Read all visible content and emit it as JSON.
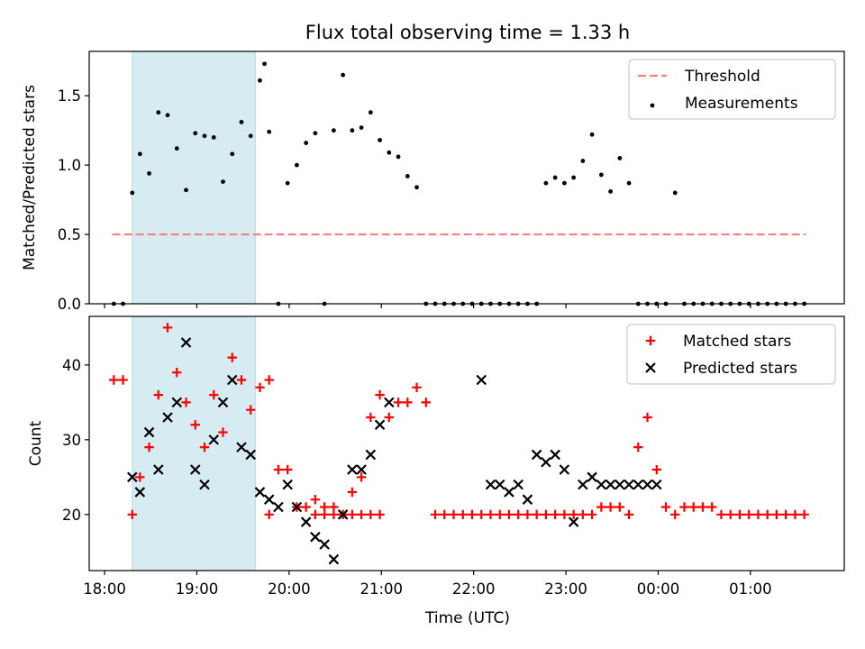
{
  "figure": {
    "title": "Flux total observing time = 1.33 h",
    "xlabel": "Time (UTC)",
    "x_tick_labels": [
      "18:00",
      "19:00",
      "20:00",
      "21:00",
      "22:00",
      "23:00",
      "00:00",
      "01:00"
    ],
    "shaded_span": {
      "start": "18:18",
      "end": "19:38",
      "color": "#add8e6"
    }
  },
  "colors": {
    "threshold": "#ff7f7f",
    "measurements": "#000000",
    "matched": "#ff0000",
    "predicted": "#000000"
  },
  "chart_data": [
    {
      "type": "scatter",
      "name": "ratio",
      "ylabel": "Matched/Predicted stars",
      "ylim": [
        0,
        1.82
      ],
      "y_ticks": [
        "0.0",
        "0.5",
        "1.0",
        "1.5"
      ],
      "legend": {
        "placement": "top-right",
        "entries": [
          "Threshold",
          "Measurements"
        ]
      },
      "threshold": {
        "value": 0.5,
        "x_start": "18:05",
        "x_end": "01:36",
        "style": "dashed"
      },
      "series": [
        {
          "name": "Measurements",
          "x": [
            "18:06",
            "18:12",
            "18:18",
            "18:23",
            "18:29",
            "18:35",
            "18:41",
            "18:47",
            "18:53",
            "18:59",
            "19:05",
            "19:11",
            "19:17",
            "19:23",
            "19:29",
            "19:35",
            "19:41",
            "19:44",
            "19:47",
            "19:53",
            "19:59",
            "20:05",
            "20:11",
            "20:17",
            "20:23",
            "20:29",
            "20:35",
            "20:41",
            "20:47",
            "20:53",
            "20:59",
            "21:05",
            "21:11",
            "21:17",
            "21:23",
            "21:29",
            "21:35",
            "21:41",
            "21:47",
            "21:53",
            "21:59",
            "22:05",
            "22:11",
            "22:17",
            "22:23",
            "22:29",
            "22:35",
            "22:41",
            "22:47",
            "22:53",
            "22:59",
            "23:05",
            "23:11",
            "23:17",
            "23:23",
            "23:29",
            "23:35",
            "23:41",
            "23:47",
            "23:53",
            "23:59",
            "00:05",
            "00:11",
            "00:17",
            "00:23",
            "00:29",
            "00:35",
            "00:41",
            "00:47",
            "00:53",
            "00:59",
            "01:05",
            "01:11",
            "01:17",
            "01:23",
            "01:29",
            "01:35"
          ],
          "y": [
            0,
            0,
            0.8,
            1.08,
            0.94,
            1.38,
            1.36,
            1.12,
            0.82,
            1.23,
            1.21,
            1.2,
            0.88,
            1.08,
            1.31,
            1.21,
            1.61,
            1.73,
            1.24,
            0,
            0.87,
            1.0,
            1.16,
            1.23,
            0,
            1.25,
            1.65,
            1.25,
            1.27,
            1.38,
            1.18,
            1.09,
            1.06,
            0.92,
            0.84,
            0,
            0,
            0,
            0,
            0,
            0,
            0,
            0,
            0,
            0,
            0,
            0,
            0,
            0.87,
            0.91,
            0.87,
            0.91,
            1.03,
            1.22,
            0.93,
            0.81,
            1.05,
            0.87,
            0,
            0,
            0,
            0,
            0.8,
            0,
            0,
            0,
            0,
            0,
            0,
            0,
            0,
            0,
            0,
            0,
            0,
            0,
            0
          ]
        }
      ]
    },
    {
      "type": "scatter",
      "name": "counts",
      "ylabel": "Count",
      "ylim": [
        12.5,
        46.5
      ],
      "y_ticks": [
        "20",
        "30",
        "40"
      ],
      "legend": {
        "placement": "top-right",
        "entries": [
          "Matched stars",
          "Predicted stars"
        ]
      },
      "series": [
        {
          "name": "Matched stars",
          "marker": "plus",
          "x": [
            "18:06",
            "18:12",
            "18:18",
            "18:23",
            "18:29",
            "18:35",
            "18:41",
            "18:47",
            "18:53",
            "18:59",
            "19:05",
            "19:11",
            "19:17",
            "19:23",
            "19:29",
            "19:35",
            "19:41",
            "19:47",
            "19:53",
            "19:59",
            "20:05",
            "20:11",
            "20:17",
            "20:23",
            "20:29",
            "20:35",
            "20:41",
            "20:47",
            "20:53",
            "20:59",
            "21:05",
            "21:11",
            "21:17",
            "21:23",
            "21:29",
            "21:35",
            "21:41",
            "21:47",
            "21:53",
            "21:59",
            "22:05",
            "22:11",
            "22:17",
            "22:23",
            "22:29",
            "22:35",
            "22:41",
            "22:47",
            "22:53",
            "22:59",
            "23:05",
            "23:11",
            "23:17",
            "23:23",
            "23:29",
            "23:35",
            "23:41",
            "23:47",
            "23:53",
            "23:59",
            "00:05",
            "00:11",
            "00:17",
            "00:23",
            "00:29",
            "00:35",
            "00:41",
            "00:47",
            "00:53",
            "00:59",
            "01:05",
            "01:11",
            "01:17",
            "01:23",
            "01:29",
            "01:35",
            "19:47",
            "20:17",
            "20:23",
            "20:29",
            "20:35",
            "20:41",
            "20:47",
            "20:53",
            "20:59"
          ],
          "y": [
            38,
            38,
            20,
            25,
            29,
            36,
            45,
            39,
            35,
            32,
            29,
            36,
            31,
            41,
            38,
            34,
            37,
            38,
            26,
            26,
            21,
            21,
            22,
            21,
            21,
            20,
            23,
            25,
            33,
            36,
            33,
            35,
            35,
            37,
            35,
            20,
            20,
            20,
            20,
            20,
            20,
            20,
            20,
            20,
            20,
            20,
            20,
            20,
            20,
            20,
            20,
            20,
            20,
            21,
            21,
            21,
            20,
            29,
            33,
            26,
            21,
            20,
            21,
            21,
            21,
            21,
            20,
            20,
            20,
            20,
            20,
            20,
            20,
            20,
            20,
            20,
            20,
            20,
            20,
            20,
            20,
            20,
            20,
            20,
            20
          ]
        },
        {
          "name": "Predicted stars",
          "marker": "x",
          "x": [
            "18:18",
            "18:23",
            "18:29",
            "18:35",
            "18:41",
            "18:47",
            "18:53",
            "18:59",
            "19:05",
            "19:11",
            "19:17",
            "19:23",
            "19:29",
            "19:35",
            "19:41",
            "19:47",
            "19:53",
            "19:59",
            "20:05",
            "20:11",
            "20:17",
            "20:23",
            "20:29",
            "20:35",
            "20:41",
            "20:47",
            "20:53",
            "20:59",
            "21:05",
            "22:05",
            "22:11",
            "22:17",
            "22:23",
            "22:29",
            "22:35",
            "22:41",
            "22:47",
            "22:53",
            "22:59",
            "23:05",
            "23:11",
            "23:17",
            "23:23",
            "23:29",
            "23:35",
            "23:41",
            "23:47",
            "23:53",
            "23:59"
          ],
          "y": [
            25,
            23,
            31,
            26,
            33,
            35,
            43,
            26,
            24,
            30,
            35,
            38,
            29,
            28,
            23,
            22,
            21,
            24,
            21,
            19,
            17,
            16,
            14,
            20,
            26,
            26,
            28,
            32,
            35,
            38,
            24,
            24,
            23,
            24,
            22,
            28,
            27,
            28,
            26,
            19,
            24,
            25,
            24,
            24,
            24,
            24,
            24,
            24,
            24
          ]
        }
      ]
    }
  ]
}
